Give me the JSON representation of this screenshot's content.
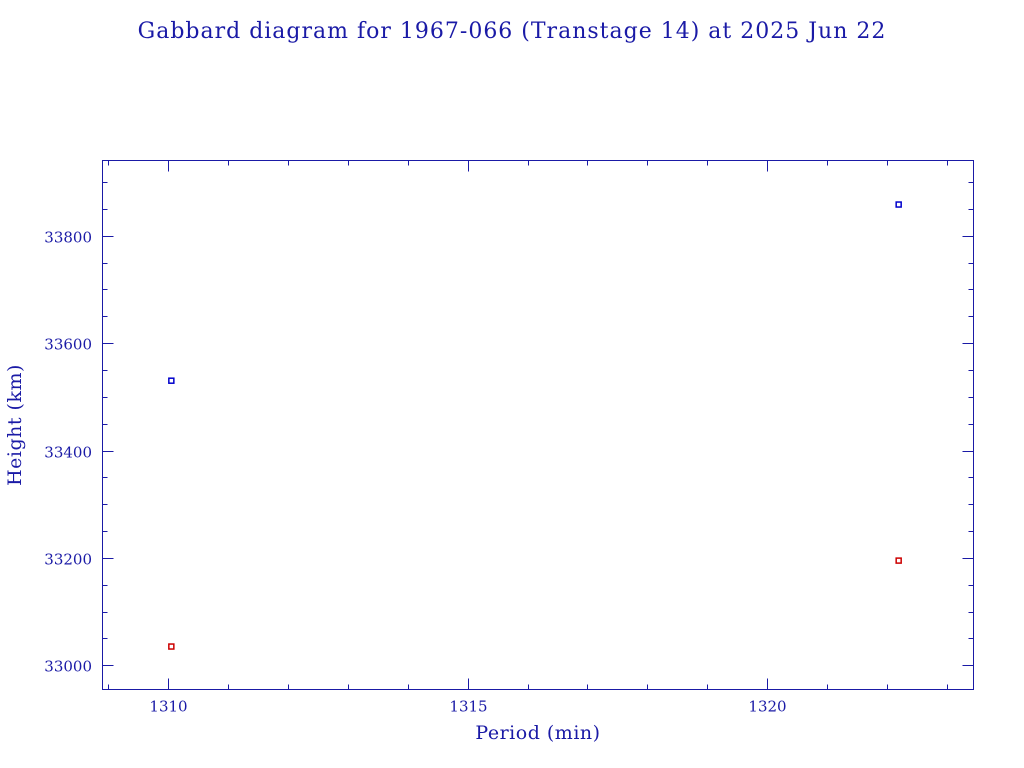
{
  "chart_data": {
    "type": "scatter",
    "title": "Gabbard diagram for 1967-066 (Transtage 14) at 2025 Jun 22",
    "xlabel": "Period (min)",
    "ylabel": "Height (km)",
    "xlim": [
      1308.9,
      1323.45
    ],
    "ylim": [
      32955,
      33940
    ],
    "x_major_ticks": [
      1310,
      1315,
      1320
    ],
    "x_minor_step": 1,
    "y_major_ticks": [
      33000,
      33200,
      33400,
      33600,
      33800
    ],
    "y_minor_step": 50,
    "x_tick_labels": [
      "1310",
      "1315",
      "1320"
    ],
    "y_tick_labels": [
      "33000",
      "33200",
      "33400",
      "33600",
      "33800"
    ],
    "grid": false,
    "legend": "none",
    "series": [
      {
        "color": "#0000cc",
        "points": [
          {
            "x": 1310.05,
            "y": 33530
          },
          {
            "x": 1322.2,
            "y": 33858
          }
        ]
      },
      {
        "color": "#cc0000",
        "points": [
          {
            "x": 1310.05,
            "y": 33035
          },
          {
            "x": 1322.2,
            "y": 33195
          }
        ]
      }
    ],
    "frame_color": "#1a1aa6"
  }
}
